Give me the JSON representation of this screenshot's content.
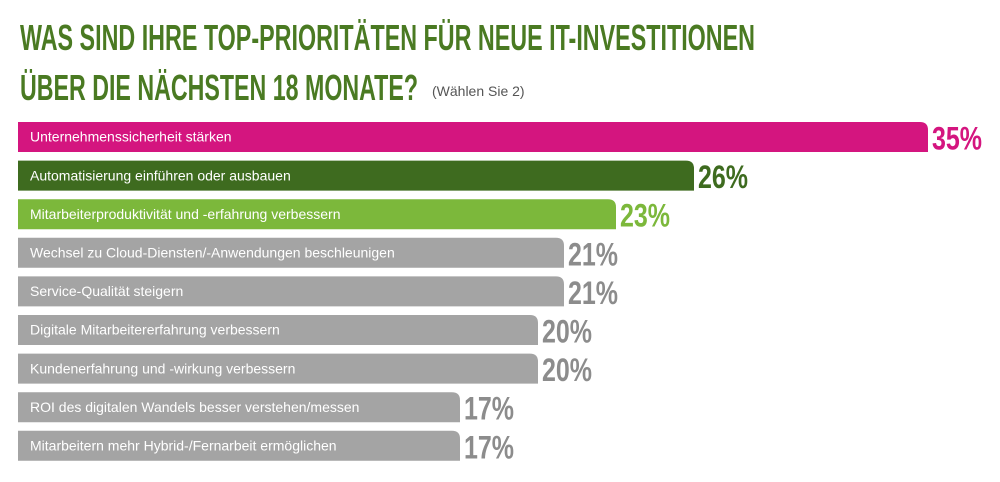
{
  "chart_data": {
    "type": "hbar",
    "title": [
      "WAS SIND IHRE TOP-PRIORITÄTEN FÜR NEUE IT-INVESTITIONEN",
      "ÜBER DIE NÄCHSTEN 18 MONATE?"
    ],
    "subtitle": "(Wählen Sie 2)",
    "categories": [
      "Unternehmenssicherheit stärken",
      "Automatisierung einführen oder ausbauen",
      "Mitarbeiterproduktivität und -erfahrung verbessern",
      "Wechsel zu Cloud-Diensten/-Anwendungen beschleunigen",
      "Service-Qualität steigern",
      "Digitale Mitarbeitererfahrung verbessern",
      "Kundenerfahrung und -wirkung verbessern",
      "ROI des digitalen Wandels besser verstehen/messen",
      "Mitarbeitern mehr Hybrid-/Fernarbeit ermöglichen"
    ],
    "values": [
      35,
      26,
      23,
      21,
      21,
      20,
      20,
      17,
      17
    ],
    "value_labels": [
      "35%",
      "26%",
      "23%",
      "21%",
      "21%",
      "20%",
      "20%",
      "17%",
      "17%"
    ],
    "colors": [
      "#d4157f",
      "#3e6b1f",
      "#7cb83b",
      "#a4a4a4",
      "#a4a4a4",
      "#a4a4a4",
      "#a4a4a4",
      "#a4a4a4",
      "#a4a4a4"
    ],
    "xlim": [
      0,
      35
    ]
  }
}
